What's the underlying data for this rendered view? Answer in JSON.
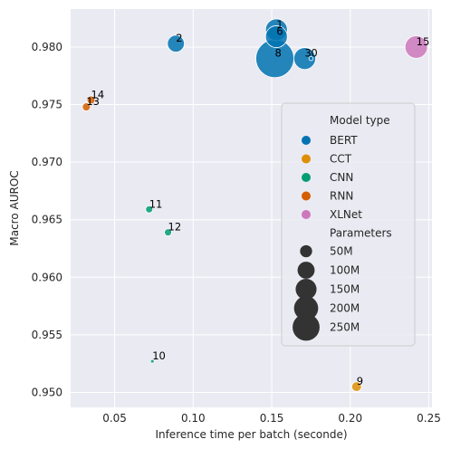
{
  "chart_data": {
    "type": "scatter",
    "title": "",
    "xlabel": "Inference time per batch (seconde)",
    "ylabel": "Macro AUROC",
    "xlim": [
      0.022,
      0.252
    ],
    "ylim": [
      0.9487,
      0.9833
    ],
    "x_ticks": [
      0.05,
      0.1,
      0.15,
      0.2,
      0.25
    ],
    "x_tick_labels": [
      "0.05",
      "0.10",
      "0.15",
      "0.20",
      "0.25"
    ],
    "y_ticks": [
      0.95,
      0.955,
      0.96,
      0.965,
      0.97,
      0.975,
      0.98
    ],
    "y_tick_labels": [
      "0.950",
      "0.955",
      "0.960",
      "0.965",
      "0.970",
      "0.975",
      "0.980"
    ],
    "grid": true,
    "background": "#eaeaf2",
    "legend": {
      "placement": "center-right",
      "hue_title": "Model type",
      "hue_entries": [
        {
          "label": "BERT",
          "color": "#0173b2"
        },
        {
          "label": "CCT",
          "color": "#de8f05"
        },
        {
          "label": "CNN",
          "color": "#029e73"
        },
        {
          "label": "RNN",
          "color": "#d55e00"
        },
        {
          "label": "XLNet",
          "color": "#cc78bc"
        }
      ],
      "size_title": "Parameters",
      "size_entries": [
        {
          "label": "50M",
          "value": 50
        },
        {
          "label": "100M",
          "value": 100
        },
        {
          "label": "150M",
          "value": 150
        },
        {
          "label": "200M",
          "value": 200
        },
        {
          "label": "250M",
          "value": 250
        }
      ]
    },
    "points": [
      {
        "label": "1",
        "x": 0.153,
        "y": 0.9815,
        "type": "BERT",
        "params": 110
      },
      {
        "label": "6",
        "x": 0.153,
        "y": 0.9809,
        "type": "BERT",
        "params": 110
      },
      {
        "label": "2",
        "x": 0.089,
        "y": 0.9803,
        "type": "BERT",
        "params": 66
      },
      {
        "label": "8",
        "x": 0.152,
        "y": 0.979,
        "type": "BERT",
        "params": 335
      },
      {
        "label": "3",
        "x": 0.171,
        "y": 0.979,
        "type": "BERT",
        "params": 110
      },
      {
        "label": "0",
        "x": 0.175,
        "y": 0.979,
        "type": "BERT",
        "params": 4
      },
      {
        "label": "15",
        "x": 0.242,
        "y": 0.98,
        "type": "XLNet",
        "params": 117
      },
      {
        "label": "14",
        "x": 0.035,
        "y": 0.9754,
        "type": "RNN",
        "params": 15
      },
      {
        "label": "13",
        "x": 0.032,
        "y": 0.9748,
        "type": "RNN",
        "params": 15
      },
      {
        "label": "11",
        "x": 0.072,
        "y": 0.9659,
        "type": "CNN",
        "params": 12
      },
      {
        "label": "12",
        "x": 0.084,
        "y": 0.9639,
        "type": "CNN",
        "params": 12
      },
      {
        "label": "10",
        "x": 0.074,
        "y": 0.9527,
        "type": "CNN",
        "params": 1
      },
      {
        "label": "9",
        "x": 0.204,
        "y": 0.9505,
        "type": "CCT",
        "params": 22
      }
    ]
  }
}
